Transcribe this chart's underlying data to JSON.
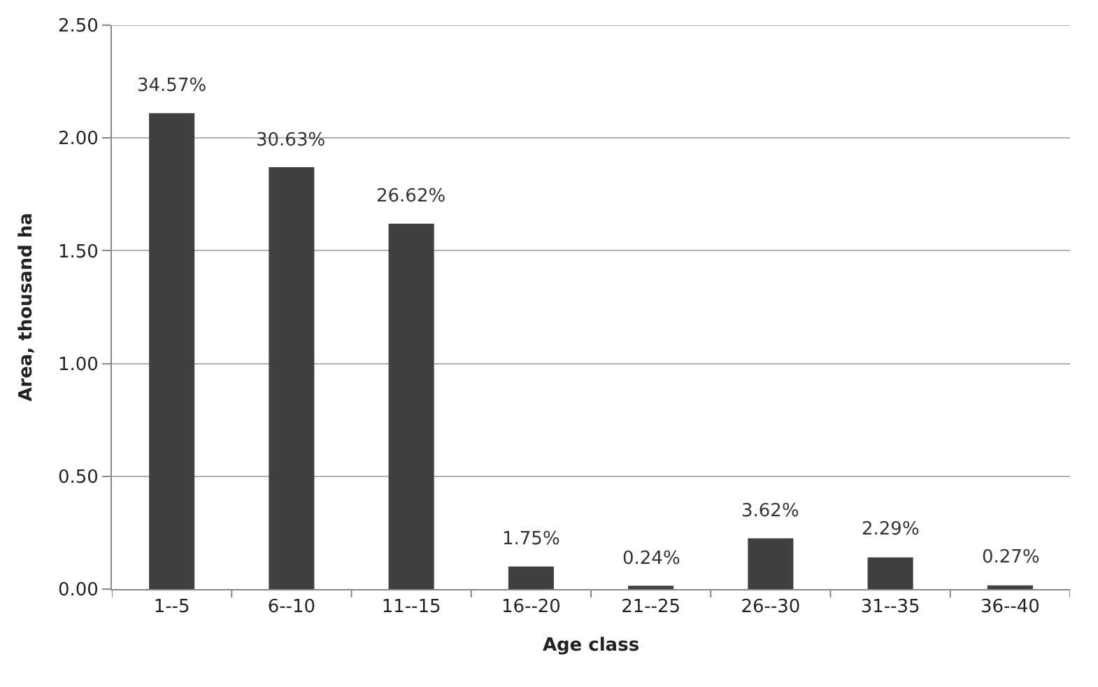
{
  "chart_data": {
    "type": "bar",
    "xlabel": "Age class",
    "ylabel": "Area, thousand ha",
    "categories": [
      "1--5",
      "6--10",
      "11--15",
      "16--20",
      "21--25",
      "26--30",
      "31--35",
      "36--40"
    ],
    "values": [
      2.11,
      1.87,
      1.62,
      0.1,
      0.015,
      0.225,
      0.14,
      0.016
    ],
    "annotations": [
      {
        "text": "34.57%",
        "x": "1--5",
        "y": 2.11
      },
      {
        "text": "30.63%",
        "x": "6--10",
        "y": 1.87
      },
      {
        "text": "26.62%",
        "x": "11--15",
        "y": 1.62
      },
      {
        "text": "1.75%",
        "x": "16--20",
        "y": 0.1
      },
      {
        "text": "0.24%",
        "x": "21--25",
        "y": 0.015
      },
      {
        "text": "3.62%",
        "x": "26--30",
        "y": 0.225
      },
      {
        "text": "2.29%",
        "x": "31--35",
        "y": 0.14
      },
      {
        "text": "0.27%",
        "x": "36--40",
        "y": 0.016
      }
    ],
    "color": "#404040",
    "ylim": [
      0,
      2.5
    ],
    "yticks": [
      {
        "value": 0,
        "label": "0.00"
      },
      {
        "value": 0.5,
        "label": "0.50"
      },
      {
        "value": 1,
        "label": "1.00"
      },
      {
        "value": 1.5,
        "label": "1.50"
      },
      {
        "value": 2,
        "label": "2.00"
      },
      {
        "value": 2.5,
        "label": "2.50"
      }
    ],
    "grid": "y"
  }
}
